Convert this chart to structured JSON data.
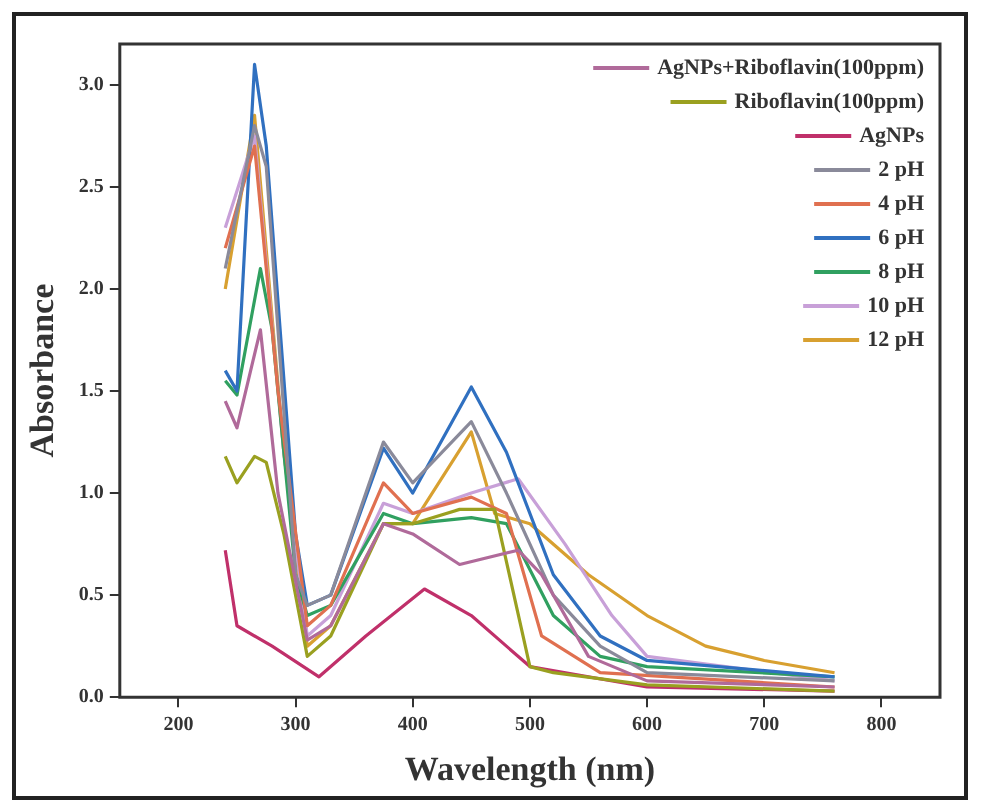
{
  "chart_data": {
    "type": "line",
    "xlabel": "Wavelength (nm)",
    "ylabel": "Absorbance",
    "xlim": [
      150,
      850
    ],
    "ylim": [
      0,
      3.2
    ],
    "xticks": [
      200,
      300,
      400,
      500,
      600,
      700,
      800
    ],
    "yticks": [
      {
        "value": 0,
        "label": "0.0"
      },
      {
        "value": 0.5,
        "label": "0.5"
      },
      {
        "value": 1,
        "label": "1.0"
      },
      {
        "value": 1.5,
        "label": "1.5"
      },
      {
        "value": 2,
        "label": "2.0"
      },
      {
        "value": 2.5,
        "label": "2.5"
      },
      {
        "value": 3,
        "label": "3.0"
      }
    ],
    "grid": false,
    "legend": "top right",
    "marker": "none",
    "line_style": "solid",
    "series": [
      {
        "name": "AgNPs+Riboflavin(100ppm)",
        "color": "#b06a9a",
        "x": [
          240,
          250,
          270,
          285,
          310,
          330,
          375,
          400,
          440,
          490,
          510,
          550,
          600,
          760
        ],
        "values": [
          1.45,
          1.32,
          1.8,
          1.0,
          0.28,
          0.35,
          0.85,
          0.8,
          0.65,
          0.72,
          0.6,
          0.2,
          0.08,
          0.05
        ]
      },
      {
        "name": "Riboflavin(100ppm)",
        "color": "#9aa020",
        "x": [
          240,
          250,
          265,
          275,
          290,
          310,
          330,
          375,
          400,
          440,
          470,
          500,
          520,
          600,
          760
        ],
        "values": [
          1.18,
          1.05,
          1.18,
          1.15,
          0.8,
          0.2,
          0.3,
          0.85,
          0.85,
          0.92,
          0.92,
          0.15,
          0.12,
          0.06,
          0.03
        ]
      },
      {
        "name": "AgNPs",
        "color": "#c0306a",
        "x": [
          240,
          250,
          280,
          320,
          360,
          410,
          450,
          500,
          600,
          760
        ],
        "values": [
          0.72,
          0.35,
          0.25,
          0.1,
          0.3,
          0.53,
          0.4,
          0.15,
          0.05,
          0.03
        ]
      },
      {
        "name": "2 pH",
        "color": "#8a8a9a",
        "x": [
          240,
          265,
          275,
          300,
          310,
          330,
          375,
          400,
          450,
          480,
          520,
          560,
          600,
          760
        ],
        "values": [
          2.1,
          2.8,
          2.6,
          0.6,
          0.45,
          0.5,
          1.25,
          1.05,
          1.35,
          1.0,
          0.5,
          0.25,
          0.12,
          0.08
        ]
      },
      {
        "name": "4 pH",
        "color": "#e07050",
        "x": [
          240,
          265,
          285,
          310,
          330,
          375,
          400,
          450,
          480,
          510,
          560,
          760
        ],
        "values": [
          2.2,
          2.7,
          1.5,
          0.35,
          0.45,
          1.05,
          0.9,
          0.98,
          0.9,
          0.3,
          0.12,
          0.05
        ]
      },
      {
        "name": "6 pH",
        "color": "#3070c0",
        "x": [
          240,
          250,
          265,
          275,
          300,
          310,
          330,
          375,
          400,
          450,
          480,
          520,
          560,
          600,
          760
        ],
        "values": [
          1.6,
          1.5,
          3.1,
          2.7,
          0.8,
          0.45,
          0.5,
          1.22,
          1.0,
          1.52,
          1.2,
          0.6,
          0.3,
          0.18,
          0.1
        ]
      },
      {
        "name": "8 pH",
        "color": "#30a060",
        "x": [
          240,
          250,
          270,
          280,
          300,
          310,
          330,
          375,
          400,
          450,
          480,
          520,
          560,
          600,
          760
        ],
        "values": [
          1.55,
          1.48,
          2.1,
          1.8,
          0.6,
          0.4,
          0.45,
          0.9,
          0.85,
          0.88,
          0.85,
          0.4,
          0.2,
          0.15,
          0.1
        ]
      },
      {
        "name": "10 pH",
        "color": "#c8a0d8",
        "x": [
          240,
          265,
          290,
          310,
          330,
          375,
          400,
          450,
          490,
          530,
          570,
          600,
          760
        ],
        "values": [
          2.3,
          2.75,
          1.2,
          0.3,
          0.4,
          0.95,
          0.9,
          1.0,
          1.07,
          0.75,
          0.4,
          0.2,
          0.08
        ]
      },
      {
        "name": "12 pH",
        "color": "#d8a030",
        "x": [
          240,
          265,
          290,
          310,
          330,
          375,
          400,
          450,
          470,
          500,
          550,
          600,
          650,
          700,
          760
        ],
        "values": [
          2.0,
          2.85,
          1.2,
          0.25,
          0.35,
          0.85,
          0.85,
          1.3,
          0.9,
          0.85,
          0.6,
          0.4,
          0.25,
          0.18,
          0.12
        ]
      }
    ]
  }
}
